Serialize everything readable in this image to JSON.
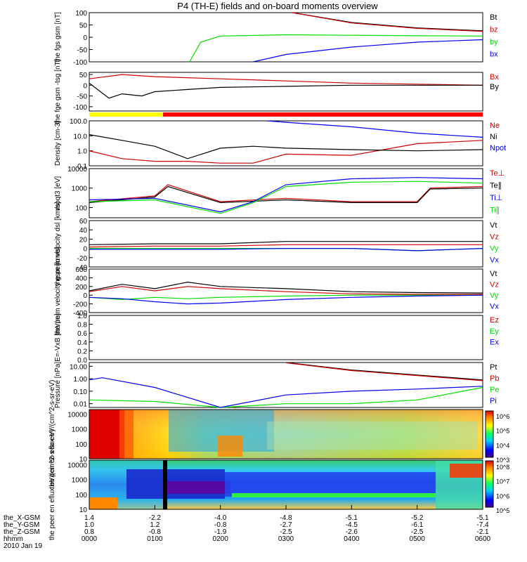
{
  "title": "P4 (TH-E) fields and on-board moments overview",
  "colors": {
    "black": "#000000",
    "red": "#cc0000",
    "green": "#00dd00",
    "blue": "#0000ee",
    "yellow": "#ffff00"
  },
  "footer": {
    "labels": [
      "the_X-GSM",
      "the_Y-GSM",
      "the_Z-GSM",
      "hhmm",
      "2010 Jan 19"
    ],
    "columns": [
      [
        "1.4",
        "1.0",
        "0.8",
        "0000"
      ],
      [
        "-2.2",
        "1.2",
        "-0.8",
        "0100"
      ],
      [
        "-4.0",
        "-0.8",
        "-1.9",
        "0200"
      ],
      [
        "-4.8",
        "-2.7",
        "-2.5",
        "0300"
      ],
      [
        "-5.1",
        "-4.5",
        "-2.6",
        "0400"
      ],
      [
        "-5.2",
        "-6.1",
        "-2.5",
        "0500"
      ],
      [
        "-5.1",
        "-7.4",
        "-2.1",
        "0600"
      ]
    ]
  },
  "chart_data": [
    {
      "type": "line",
      "ylabel": "the fgs gsm [nT]",
      "ylim": [
        -100,
        100
      ],
      "yticks": [
        "100",
        "50",
        "0",
        "-50",
        "-100"
      ],
      "series": [
        {
          "name": "Bt",
          "color": "#000000",
          "x": [
            0.0,
            0.15,
            0.3,
            0.31,
            0.4,
            0.5,
            0.6
          ],
          "y": [
            null,
            null,
            null,
            100,
            60,
            38,
            26
          ]
        },
        {
          "name": "bz",
          "color": "#cc0000",
          "x": [
            0.0,
            0.15,
            0.3,
            0.31,
            0.4,
            0.5,
            0.6
          ],
          "y": [
            null,
            null,
            null,
            100,
            58,
            36,
            24
          ]
        },
        {
          "name": "by",
          "color": "#00dd00",
          "x": [
            0.153,
            0.17,
            0.2,
            0.3,
            0.4,
            0.5,
            0.6
          ],
          "y": [
            -100,
            -20,
            5,
            10,
            8,
            6,
            5
          ]
        },
        {
          "name": "bx",
          "color": "#0000ee",
          "x": [
            0.25,
            0.3,
            0.4,
            0.5,
            0.6
          ],
          "y": [
            -100,
            -70,
            -40,
            -20,
            -10
          ]
        }
      ]
    },
    {
      "type": "line",
      "ylabel": "the fge gsm -tsg [nT]",
      "ylim": [
        -120,
        60
      ],
      "yticks": [
        "50",
        "0",
        "-50",
        "-100"
      ],
      "series": [
        {
          "name": "Bx",
          "color": "#cc0000",
          "x": [
            0.0,
            0.05,
            0.1,
            0.2,
            0.3,
            0.4,
            0.5,
            0.6
          ],
          "y": [
            30,
            50,
            40,
            30,
            20,
            10,
            5,
            0
          ]
        },
        {
          "name": "By",
          "color": "#000000",
          "x": [
            0.0,
            0.03,
            0.05,
            0.08,
            0.1,
            0.15,
            0.2,
            0.3,
            0.4,
            0.5,
            0.6
          ],
          "y": [
            10,
            -60,
            -40,
            -50,
            -30,
            -20,
            -10,
            -5,
            0,
            0,
            0
          ]
        }
      ]
    },
    {
      "type": "line",
      "ylabel": "Density [cm-3]",
      "scale": "log",
      "ylim": [
        0.1,
        100
      ],
      "yticks": [
        "100.0",
        "10.0",
        "1.0",
        "0.1"
      ],
      "series": [
        {
          "name": "Ne",
          "color": "#cc0000",
          "x": [
            0.0,
            0.05,
            0.1,
            0.15,
            0.2,
            0.25,
            0.3,
            0.4,
            0.5,
            0.6
          ],
          "y": [
            1.0,
            0.3,
            0.2,
            0.2,
            0.15,
            0.15,
            0.6,
            0.5,
            3.0,
            5.0
          ]
        },
        {
          "name": "Ni",
          "color": "#000000",
          "x": [
            0.0,
            0.05,
            0.1,
            0.15,
            0.2,
            0.25,
            0.3,
            0.4,
            0.5,
            0.6
          ],
          "y": [
            12,
            5,
            2,
            0.3,
            1.5,
            2.0,
            1.5,
            1.2,
            1.0,
            1.2
          ]
        },
        {
          "name": "Npot",
          "color": "#0000ee",
          "x": [
            0.27,
            0.3,
            0.4,
            0.5,
            0.6
          ],
          "y": [
            100,
            80,
            40,
            15,
            8
          ]
        }
      ]
    },
    {
      "type": "line",
      "ylabel": "moqt3 [eV]",
      "scale": "log",
      "ylim": [
        30,
        10000
      ],
      "yticks": [
        "10000",
        "1000",
        "100"
      ],
      "series": [
        {
          "name": "Te⊥",
          "color": "#cc0000",
          "x": [
            0.0,
            0.1,
            0.12,
            0.2,
            0.3,
            0.4,
            0.5,
            0.52,
            0.6
          ],
          "y": [
            200,
            400,
            1500,
            200,
            300,
            200,
            200,
            1000,
            1200
          ]
        },
        {
          "name": "Te∥",
          "color": "#000000",
          "x": [
            0.0,
            0.1,
            0.12,
            0.2,
            0.3,
            0.4,
            0.5,
            0.52,
            0.6
          ],
          "y": [
            180,
            350,
            1200,
            180,
            250,
            180,
            180,
            900,
            1000
          ]
        },
        {
          "name": "Ti⊥",
          "color": "#0000ee",
          "x": [
            0.0,
            0.1,
            0.2,
            0.25,
            0.3,
            0.4,
            0.5,
            0.6
          ],
          "y": [
            250,
            300,
            60,
            200,
            1500,
            3000,
            3500,
            3000
          ]
        },
        {
          "name": "Ti∥",
          "color": "#00dd00",
          "x": [
            0.0,
            0.1,
            0.2,
            0.25,
            0.3,
            0.4,
            0.5,
            0.6
          ],
          "y": [
            200,
            250,
            50,
            180,
            1200,
            2000,
            2200,
            1800
          ]
        }
      ]
    },
    {
      "type": "line",
      "ylabel": "the peim velocity dsl [km/s]",
      "ylim": [
        -40,
        60
      ],
      "yticks": [
        "60",
        "40",
        "20",
        "0",
        "-20",
        "-40"
      ],
      "series": [
        {
          "name": "Vt",
          "color": "#000000",
          "x": [
            0.0,
            0.1,
            0.2,
            0.3,
            0.4,
            0.5,
            0.6
          ],
          "y": [
            8,
            10,
            10,
            15,
            15,
            15,
            15
          ]
        },
        {
          "name": "Vz",
          "color": "#cc0000",
          "x": [
            0.0,
            0.1,
            0.2,
            0.3,
            0.4,
            0.5,
            0.6
          ],
          "y": [
            3,
            5,
            5,
            8,
            8,
            8,
            8
          ]
        },
        {
          "name": "Vy",
          "color": "#00dd00",
          "x": [
            0.0,
            0.1,
            0.2,
            0.3,
            0.4,
            0.5,
            0.6
          ],
          "y": [
            0,
            0,
            0,
            0,
            0,
            -5,
            0
          ]
        },
        {
          "name": "Vx",
          "color": "#0000ee",
          "x": [
            0.0,
            0.1,
            0.2,
            0.3,
            0.4,
            0.5,
            0.6
          ],
          "y": [
            -2,
            -2,
            -2,
            0,
            0,
            -5,
            0
          ]
        }
      ]
    },
    {
      "type": "line",
      "ylabel": "the peim velocity gsm [km/s]",
      "ylim": [
        -400,
        600
      ],
      "yticks": [
        "600",
        "400",
        "200",
        "0",
        "-200",
        "-400"
      ],
      "series": [
        {
          "name": "Vt",
          "color": "#000000",
          "x": [
            0.0,
            0.05,
            0.1,
            0.15,
            0.2,
            0.3,
            0.4,
            0.5,
            0.6
          ],
          "y": [
            100,
            250,
            150,
            300,
            200,
            150,
            80,
            60,
            50
          ]
        },
        {
          "name": "Vz",
          "color": "#cc0000",
          "x": [
            0.0,
            0.05,
            0.1,
            0.15,
            0.2,
            0.3,
            0.4,
            0.5,
            0.6
          ],
          "y": [
            80,
            200,
            100,
            200,
            150,
            80,
            30,
            20,
            20
          ]
        },
        {
          "name": "Vy",
          "color": "#00dd00",
          "x": [
            0.0,
            0.05,
            0.1,
            0.15,
            0.2,
            0.3,
            0.4,
            0.5,
            0.6
          ],
          "y": [
            -50,
            -100,
            -50,
            -80,
            -50,
            -20,
            0,
            0,
            0
          ]
        },
        {
          "name": "Vx",
          "color": "#0000ee",
          "x": [
            0.0,
            0.05,
            0.1,
            0.15,
            0.2,
            0.3,
            0.4,
            0.5,
            0.6
          ],
          "y": [
            -50,
            -80,
            -150,
            -200,
            -180,
            -100,
            -50,
            -20,
            0
          ]
        }
      ]
    },
    {
      "type": "line",
      "ylabel": "E=-VxB [mV/m]",
      "ylim": [
        0,
        1
      ],
      "yticks": [
        "1.0",
        "0.8",
        "0.6",
        "0.4",
        "0.2",
        "0.0"
      ],
      "series": [
        {
          "name": "Ez",
          "color": "#cc0000",
          "x": [],
          "y": []
        },
        {
          "name": "Ey",
          "color": "#00dd00",
          "x": [],
          "y": []
        },
        {
          "name": "Ex",
          "color": "#0000ee",
          "x": [],
          "y": []
        }
      ]
    },
    {
      "type": "line",
      "ylabel": "Pressure [nPa]",
      "scale": "log",
      "ylim": [
        0.005,
        20
      ],
      "yticks": [
        "10.00",
        "1.00",
        "0.10",
        "0.01"
      ],
      "series": [
        {
          "name": "Pt",
          "color": "#000000",
          "x": [
            0.3,
            0.4,
            0.5,
            0.6
          ],
          "y": [
            20,
            5,
            2,
            0.8
          ]
        },
        {
          "name": "Pb",
          "color": "#cc0000",
          "x": [
            0.3,
            0.4,
            0.5,
            0.6
          ],
          "y": [
            19,
            4.5,
            1.8,
            0.7
          ]
        },
        {
          "name": "Pe",
          "color": "#00dd00",
          "x": [
            0.0,
            0.1,
            0.2,
            0.3,
            0.4,
            0.5,
            0.6
          ],
          "y": [
            0.02,
            0.015,
            0.005,
            0.01,
            0.01,
            0.02,
            0.2
          ]
        },
        {
          "name": "Pi",
          "color": "#0000ee",
          "x": [
            0.0,
            0.02,
            0.1,
            0.2,
            0.3,
            0.4,
            0.5,
            0.6
          ],
          "y": [
            0.8,
            1.2,
            0.2,
            0.005,
            0.05,
            0.1,
            0.15,
            0.25
          ]
        }
      ]
    },
    {
      "type": "heatmap",
      "ylabel": "the peir en eflux eV/(cm^2-s-sr-eV)",
      "scale": "log",
      "yticks": [
        "10000",
        "1000",
        "100",
        "10"
      ],
      "colorbar": [
        "10^6",
        "10^5",
        "10^4",
        "10^3"
      ]
    },
    {
      "type": "heatmap",
      "ylabel": "the peer en eflux eV/(cm^2-s-sr-eV)",
      "scale": "log",
      "yticks": [
        "10000",
        "1000",
        "100",
        "10"
      ],
      "colorbar": [
        "10^8",
        "10^7",
        "10^6",
        "10^5"
      ]
    }
  ]
}
